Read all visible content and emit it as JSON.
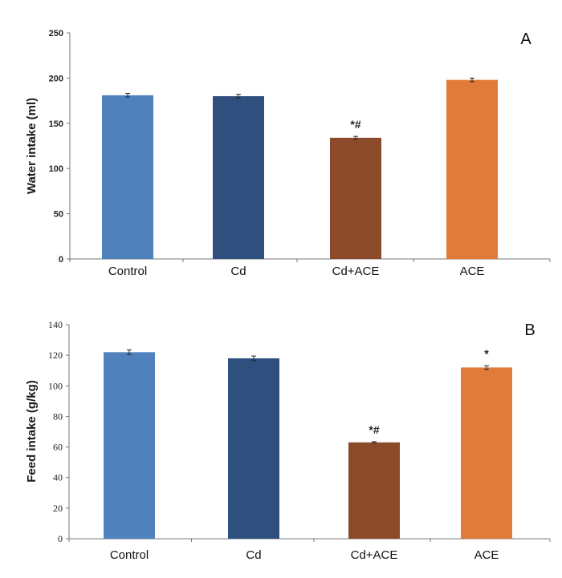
{
  "chart_data": [
    {
      "type": "bar",
      "panel_label": "A",
      "ylabel": "Water intake (ml)",
      "xlabel": "",
      "categories": [
        "Control",
        "Cd",
        "Cd+ACE",
        "ACE"
      ],
      "values": [
        181,
        180,
        134,
        198
      ],
      "errors": [
        2,
        2,
        1.5,
        2
      ],
      "annotations": [
        "",
        "",
        "*#",
        ""
      ],
      "colors": [
        "#4f81bd",
        "#2f4f7f",
        "#8b4a2a",
        "#e07b39"
      ],
      "ylim": [
        0,
        250
      ],
      "yticks": [
        0,
        50,
        100,
        150,
        200,
        250
      ]
    },
    {
      "type": "bar",
      "panel_label": "B",
      "ylabel": "Feed intake (g/kg)",
      "xlabel": "",
      "categories": [
        "Control",
        "Cd",
        "Cd+ACE",
        "ACE"
      ],
      "values": [
        122,
        118,
        63,
        112
      ],
      "errors": [
        1.5,
        1.5,
        0.5,
        1.2
      ],
      "annotations": [
        "",
        "",
        "*#",
        "*"
      ],
      "colors": [
        "#4f81bd",
        "#2f4f7f",
        "#8b4a2a",
        "#e07b39"
      ],
      "ylim": [
        0,
        140
      ],
      "yticks": [
        0,
        20,
        40,
        60,
        80,
        100,
        120,
        140
      ]
    }
  ]
}
